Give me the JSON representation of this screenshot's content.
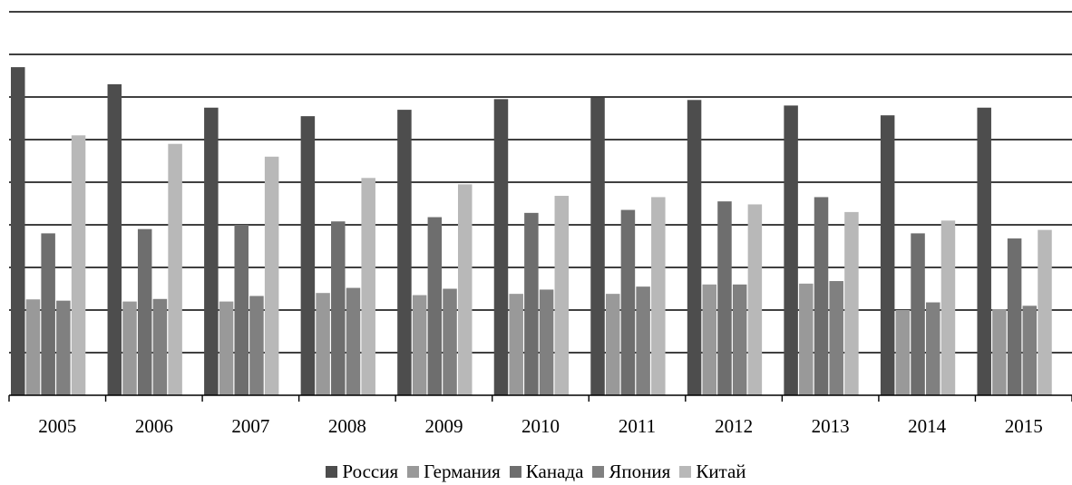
{
  "chart_data": {
    "type": "bar",
    "title": "",
    "xlabel": "",
    "ylabel": "",
    "ylim": [
      0,
      9
    ],
    "grid": true,
    "legend_position": "bottom",
    "categories": [
      "2005",
      "2006",
      "2007",
      "2008",
      "2009",
      "2010",
      "2011",
      "2012",
      "2013",
      "2014",
      "2015"
    ],
    "series": [
      {
        "name": "Россия",
        "color": "#4d4d4d",
        "values": [
          7.7,
          7.3,
          6.75,
          6.55,
          6.7,
          6.95,
          6.98,
          6.93,
          6.8,
          6.57,
          6.75
        ]
      },
      {
        "name": "Германия",
        "color": "#999999",
        "values": [
          2.25,
          2.2,
          2.2,
          2.4,
          2.35,
          2.38,
          2.38,
          2.6,
          2.62,
          2.0,
          2.02
        ]
      },
      {
        "name": "Канада",
        "color": "#6e6e6e",
        "values": [
          3.8,
          3.9,
          4.0,
          4.08,
          4.18,
          4.28,
          4.35,
          4.55,
          4.65,
          3.8,
          3.68
        ]
      },
      {
        "name": "Япония",
        "color": "#808080",
        "values": [
          2.22,
          2.26,
          2.33,
          2.52,
          2.5,
          2.48,
          2.55,
          2.6,
          2.68,
          2.18,
          2.1
        ]
      },
      {
        "name": "Китай",
        "color": "#b8b8b8",
        "values": [
          6.1,
          5.9,
          5.6,
          5.1,
          4.95,
          4.68,
          4.65,
          4.48,
          4.3,
          4.1,
          3.88
        ]
      }
    ]
  }
}
